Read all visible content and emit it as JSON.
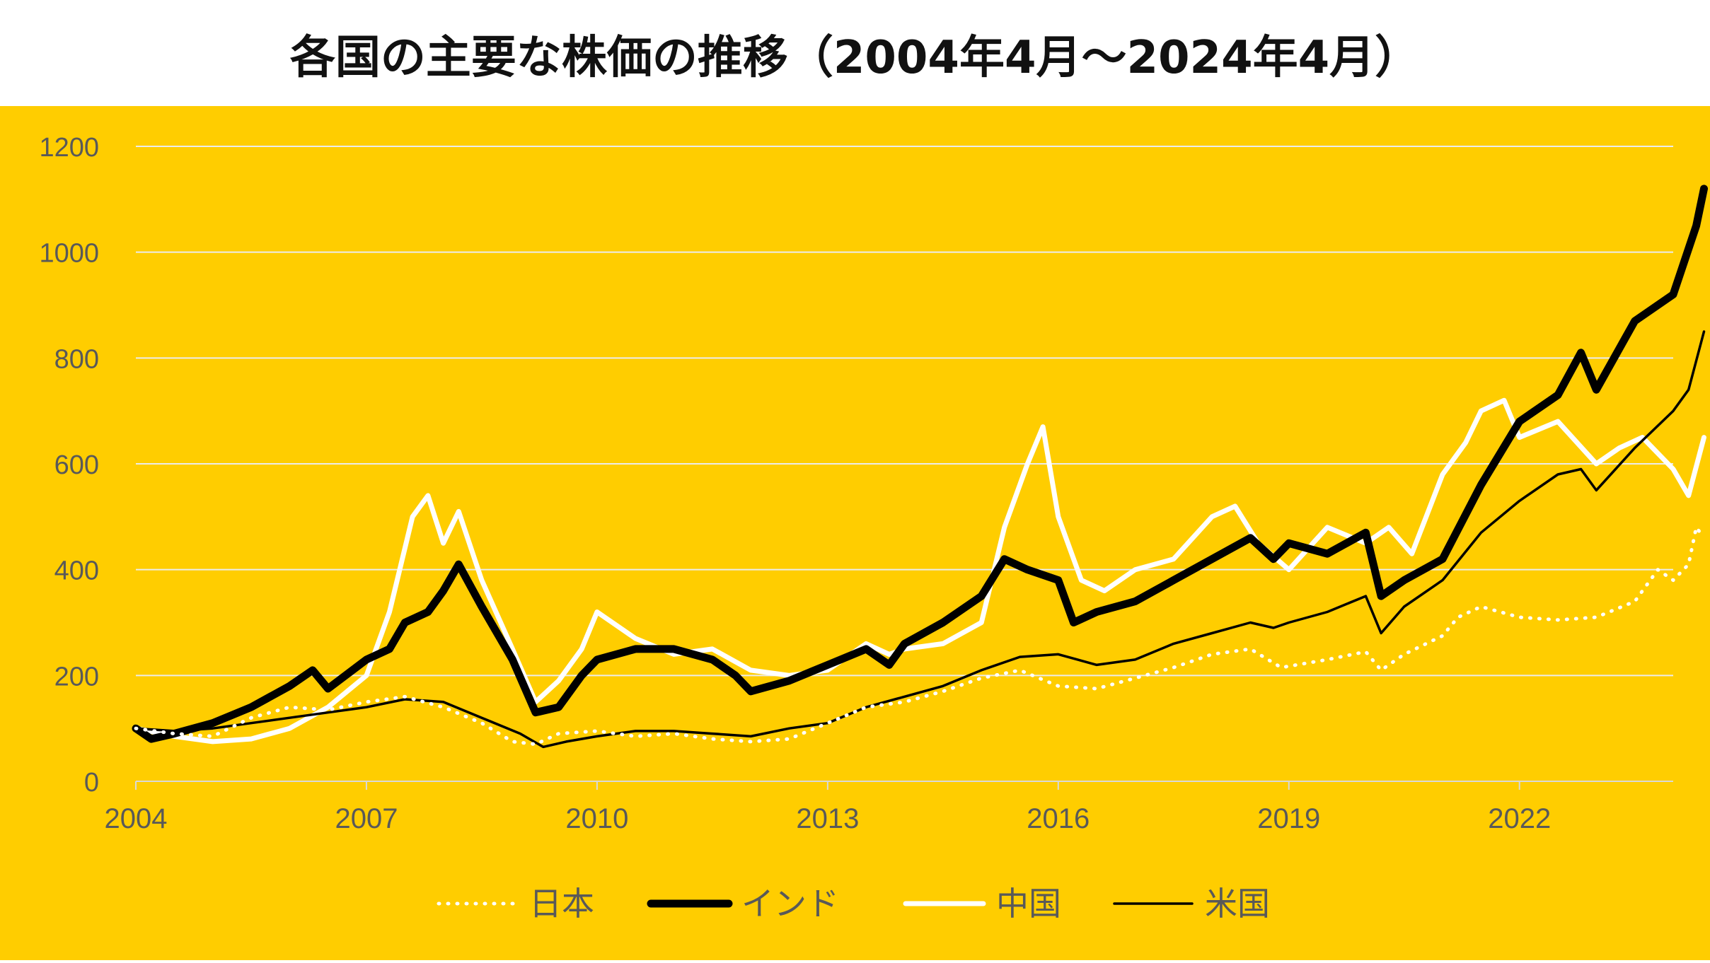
{
  "chart_data": {
    "type": "line",
    "title": "各国の主要な株価の推移（2004年4月～2024年4月）",
    "xlabel": "",
    "ylabel": "",
    "xlim": [
      2004.0,
      2024.0
    ],
    "ylim": [
      0,
      1200
    ],
    "y_ticks": [
      0,
      200,
      400,
      600,
      800,
      1000,
      1200
    ],
    "x_ticks": [
      2004,
      2007,
      2010,
      2013,
      2016,
      2019,
      2022
    ],
    "x_tick_labels": [
      "2004",
      "2007",
      "2010",
      "2013",
      "2016",
      "2019",
      "2022"
    ],
    "y_tick_labels": [
      "0",
      "200",
      "400",
      "600",
      "800",
      "1000",
      "1200"
    ],
    "grid": "horizontal",
    "legend_position": "bottom",
    "background_color": "#FFCD00",
    "series": [
      {
        "name": "日本",
        "color": "#FFFFFF",
        "style": "dotted",
        "points": [
          [
            2004.0,
            100
          ],
          [
            2004.5,
            90
          ],
          [
            2005.0,
            85
          ],
          [
            2005.5,
            120
          ],
          [
            2006.0,
            140
          ],
          [
            2006.5,
            135
          ],
          [
            2007.0,
            150
          ],
          [
            2007.5,
            160
          ],
          [
            2008.0,
            140
          ],
          [
            2008.5,
            110
          ],
          [
            2008.9,
            75
          ],
          [
            2009.2,
            70
          ],
          [
            2009.5,
            90
          ],
          [
            2010.0,
            95
          ],
          [
            2010.5,
            85
          ],
          [
            2011.0,
            90
          ],
          [
            2011.5,
            80
          ],
          [
            2012.0,
            75
          ],
          [
            2012.5,
            80
          ],
          [
            2013.0,
            110
          ],
          [
            2013.5,
            140
          ],
          [
            2014.0,
            150
          ],
          [
            2014.5,
            170
          ],
          [
            2015.0,
            195
          ],
          [
            2015.5,
            210
          ],
          [
            2016.0,
            180
          ],
          [
            2016.5,
            175
          ],
          [
            2017.0,
            195
          ],
          [
            2017.5,
            215
          ],
          [
            2018.0,
            240
          ],
          [
            2018.5,
            250
          ],
          [
            2018.9,
            215
          ],
          [
            2019.5,
            230
          ],
          [
            2020.0,
            245
          ],
          [
            2020.2,
            210
          ],
          [
            2020.5,
            240
          ],
          [
            2021.0,
            275
          ],
          [
            2021.2,
            310
          ],
          [
            2021.5,
            330
          ],
          [
            2022.0,
            310
          ],
          [
            2022.5,
            305
          ],
          [
            2023.0,
            310
          ],
          [
            2023.5,
            340
          ],
          [
            2023.8,
            400
          ],
          [
            2024.0,
            380
          ],
          [
            2024.2,
            410
          ],
          [
            2024.3,
            480
          ],
          [
            2024.4,
            460
          ]
        ]
      },
      {
        "name": "インド",
        "color": "#000000",
        "style": "thick",
        "points": [
          [
            2004.0,
            100
          ],
          [
            2004.2,
            80
          ],
          [
            2004.5,
            90
          ],
          [
            2005.0,
            110
          ],
          [
            2005.5,
            140
          ],
          [
            2006.0,
            180
          ],
          [
            2006.3,
            210
          ],
          [
            2006.5,
            175
          ],
          [
            2007.0,
            230
          ],
          [
            2007.3,
            250
          ],
          [
            2007.5,
            300
          ],
          [
            2007.8,
            320
          ],
          [
            2008.0,
            360
          ],
          [
            2008.2,
            410
          ],
          [
            2008.5,
            330
          ],
          [
            2008.9,
            230
          ],
          [
            2009.2,
            130
          ],
          [
            2009.5,
            140
          ],
          [
            2009.8,
            200
          ],
          [
            2010.0,
            230
          ],
          [
            2010.5,
            250
          ],
          [
            2011.0,
            250
          ],
          [
            2011.5,
            230
          ],
          [
            2011.8,
            200
          ],
          [
            2012.0,
            170
          ],
          [
            2012.5,
            190
          ],
          [
            2013.0,
            220
          ],
          [
            2013.5,
            250
          ],
          [
            2013.8,
            220
          ],
          [
            2014.0,
            260
          ],
          [
            2014.5,
            300
          ],
          [
            2015.0,
            350
          ],
          [
            2015.3,
            420
          ],
          [
            2015.6,
            400
          ],
          [
            2016.0,
            380
          ],
          [
            2016.2,
            300
          ],
          [
            2016.5,
            320
          ],
          [
            2017.0,
            340
          ],
          [
            2017.5,
            380
          ],
          [
            2018.0,
            420
          ],
          [
            2018.5,
            460
          ],
          [
            2018.8,
            420
          ],
          [
            2019.0,
            450
          ],
          [
            2019.5,
            430
          ],
          [
            2020.0,
            470
          ],
          [
            2020.2,
            350
          ],
          [
            2020.5,
            380
          ],
          [
            2021.0,
            420
          ],
          [
            2021.5,
            560
          ],
          [
            2022.0,
            680
          ],
          [
            2022.5,
            730
          ],
          [
            2022.8,
            810
          ],
          [
            2023.0,
            740
          ],
          [
            2023.5,
            870
          ],
          [
            2024.0,
            920
          ],
          [
            2024.3,
            1050
          ],
          [
            2024.4,
            1120
          ]
        ]
      },
      {
        "name": "中国",
        "color": "#FFFFFF",
        "style": "medium",
        "points": [
          [
            2004.0,
            100
          ],
          [
            2004.5,
            85
          ],
          [
            2005.0,
            75
          ],
          [
            2005.5,
            80
          ],
          [
            2006.0,
            100
          ],
          [
            2006.5,
            140
          ],
          [
            2007.0,
            200
          ],
          [
            2007.3,
            320
          ],
          [
            2007.6,
            500
          ],
          [
            2007.8,
            540
          ],
          [
            2008.0,
            450
          ],
          [
            2008.2,
            510
          ],
          [
            2008.5,
            380
          ],
          [
            2008.9,
            250
          ],
          [
            2009.2,
            150
          ],
          [
            2009.5,
            190
          ],
          [
            2009.8,
            250
          ],
          [
            2010.0,
            320
          ],
          [
            2010.5,
            270
          ],
          [
            2011.0,
            240
          ],
          [
            2011.5,
            250
          ],
          [
            2012.0,
            210
          ],
          [
            2012.5,
            200
          ],
          [
            2013.0,
            210
          ],
          [
            2013.5,
            260
          ],
          [
            2013.8,
            240
          ],
          [
            2014.0,
            250
          ],
          [
            2014.5,
            260
          ],
          [
            2015.0,
            300
          ],
          [
            2015.3,
            480
          ],
          [
            2015.6,
            600
          ],
          [
            2015.8,
            670
          ],
          [
            2016.0,
            500
          ],
          [
            2016.3,
            380
          ],
          [
            2016.6,
            360
          ],
          [
            2017.0,
            400
          ],
          [
            2017.5,
            420
          ],
          [
            2018.0,
            500
          ],
          [
            2018.3,
            520
          ],
          [
            2018.6,
            450
          ],
          [
            2019.0,
            400
          ],
          [
            2019.5,
            480
          ],
          [
            2020.0,
            450
          ],
          [
            2020.3,
            480
          ],
          [
            2020.6,
            430
          ],
          [
            2021.0,
            580
          ],
          [
            2021.3,
            640
          ],
          [
            2021.5,
            700
          ],
          [
            2021.8,
            720
          ],
          [
            2022.0,
            650
          ],
          [
            2022.5,
            680
          ],
          [
            2023.0,
            600
          ],
          [
            2023.3,
            630
          ],
          [
            2023.6,
            650
          ],
          [
            2024.0,
            590
          ],
          [
            2024.2,
            540
          ],
          [
            2024.4,
            650
          ]
        ]
      },
      {
        "name": "米国",
        "color": "#000000",
        "style": "thin",
        "points": [
          [
            2004.0,
            100
          ],
          [
            2004.5,
            95
          ],
          [
            2005.0,
            100
          ],
          [
            2005.5,
            110
          ],
          [
            2006.0,
            120
          ],
          [
            2006.5,
            130
          ],
          [
            2007.0,
            140
          ],
          [
            2007.5,
            155
          ],
          [
            2008.0,
            150
          ],
          [
            2008.5,
            120
          ],
          [
            2009.0,
            90
          ],
          [
            2009.3,
            65
          ],
          [
            2009.6,
            75
          ],
          [
            2010.0,
            85
          ],
          [
            2010.5,
            95
          ],
          [
            2011.0,
            95
          ],
          [
            2011.5,
            90
          ],
          [
            2012.0,
            85
          ],
          [
            2012.5,
            100
          ],
          [
            2013.0,
            110
          ],
          [
            2013.5,
            140
          ],
          [
            2014.0,
            160
          ],
          [
            2014.5,
            180
          ],
          [
            2015.0,
            210
          ],
          [
            2015.5,
            235
          ],
          [
            2016.0,
            240
          ],
          [
            2016.5,
            220
          ],
          [
            2017.0,
            230
          ],
          [
            2017.5,
            260
          ],
          [
            2018.0,
            280
          ],
          [
            2018.5,
            300
          ],
          [
            2018.8,
            290
          ],
          [
            2019.0,
            300
          ],
          [
            2019.5,
            320
          ],
          [
            2020.0,
            350
          ],
          [
            2020.2,
            280
          ],
          [
            2020.5,
            330
          ],
          [
            2021.0,
            380
          ],
          [
            2021.5,
            470
          ],
          [
            2022.0,
            530
          ],
          [
            2022.5,
            580
          ],
          [
            2022.8,
            590
          ],
          [
            2023.0,
            550
          ],
          [
            2023.5,
            630
          ],
          [
            2024.0,
            700
          ],
          [
            2024.2,
            740
          ],
          [
            2024.4,
            850
          ]
        ]
      }
    ]
  }
}
